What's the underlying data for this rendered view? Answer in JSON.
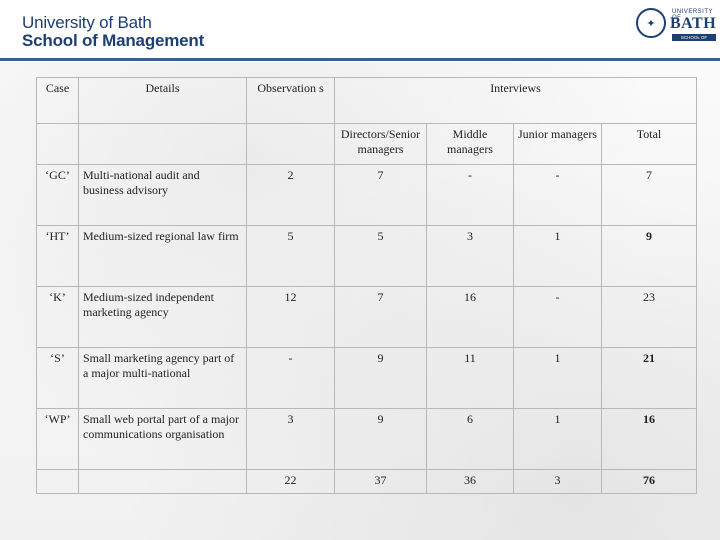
{
  "header": {
    "university": "University of Bath",
    "school": "School of Management",
    "crest": {
      "university_small": "UNIVERSITY OF",
      "bath": "BATH",
      "school_small": "SCHOOL OF MANAGEMENT"
    }
  },
  "table": {
    "headers": {
      "case": "Case",
      "details": "Details",
      "observations": "Observation s",
      "interviews": "Interviews"
    },
    "subheaders": {
      "directors": "Directors/Senior managers",
      "middle": "Middle managers",
      "junior": "Junior managers",
      "total": "Total"
    },
    "rows": [
      {
        "case": "‘GC’",
        "details": "Multi-national audit and business advisory",
        "observations": "2",
        "directors": "7",
        "middle": "-",
        "junior": "-",
        "total": "7"
      },
      {
        "case": "‘HT’",
        "details": "Medium-sized regional law firm",
        "observations": "5",
        "directors": "5",
        "middle": "3",
        "junior": "1",
        "total": "9"
      },
      {
        "case": "‘K’",
        "details": "Medium-sized independent marketing agency",
        "observations": "12",
        "directors": "7",
        "middle": "16",
        "junior": "-",
        "total": "23"
      },
      {
        "case": "‘S’",
        "details": "Small marketing agency part of a major multi-national",
        "observations": "-",
        "directors": "9",
        "middle": "11",
        "junior": "1",
        "total": "21"
      },
      {
        "case": "‘WP’",
        "details": "Small web portal part of a major communications organisation",
        "observations": "3",
        "directors": "9",
        "middle": "6",
        "junior": "1",
        "total": "16"
      }
    ],
    "totals": {
      "observations": "22",
      "directors": "37",
      "middle": "36",
      "junior": "3",
      "total": "76"
    }
  }
}
